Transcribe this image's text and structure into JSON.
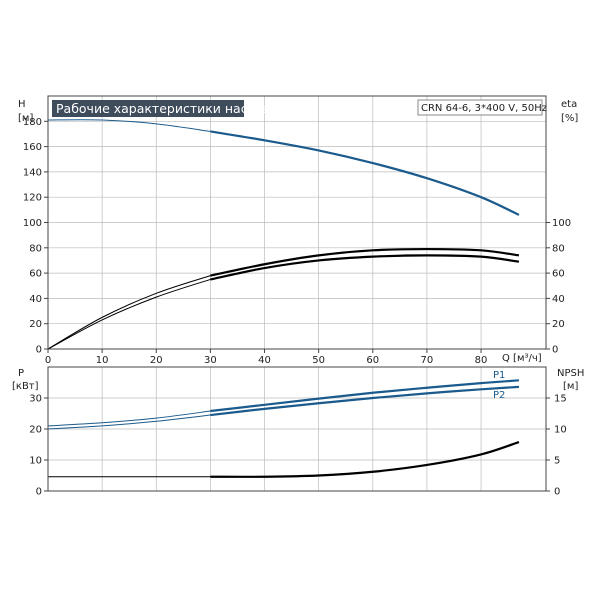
{
  "title": "Рабочие характеристики насоса",
  "model": "CRN 64-6, 3*400 V, 50Hz",
  "colors": {
    "pump": "#1a5a8c",
    "eta": "#000000",
    "grid": "#bcbcbc",
    "frame": "#444444",
    "banner": "#3f4c5c"
  },
  "chart_data": [
    {
      "type": "line",
      "panel": "top",
      "title": "Рабочие характеристики насоса",
      "xlabel": "Q [м³/ч]",
      "x_ticks": [
        0,
        10,
        20,
        30,
        40,
        50,
        60,
        70,
        80
      ],
      "xlim": [
        0,
        92
      ],
      "y_left": {
        "label_top": "H",
        "label_unit": "[м]",
        "ticks": [
          0,
          20,
          40,
          60,
          80,
          100,
          120,
          140,
          160,
          180
        ],
        "lim": [
          0,
          200
        ]
      },
      "y_right": {
        "label_top": "eta",
        "label_unit": "[%]",
        "ticks": [
          0,
          20,
          40,
          60,
          80,
          100
        ],
        "lim": [
          0,
          200
        ]
      },
      "grid": true,
      "series": [
        {
          "axis": "left",
          "color": "#1a5a8c",
          "points_thin": [
            [
              0,
              181
            ],
            [
              10,
              181
            ],
            [
              20,
              178
            ],
            [
              30,
              172
            ]
          ],
          "points_bold": [
            [
              30,
              172
            ],
            [
              40,
              165
            ],
            [
              50,
              157
            ],
            [
              60,
              147
            ],
            [
              70,
              135
            ],
            [
              80,
              120
            ],
            [
              87,
              106
            ]
          ]
        },
        {
          "axis": "right",
          "color": "#000000",
          "points_thin": [
            [
              0,
              0
            ],
            [
              10,
              23
            ],
            [
              20,
              41
            ],
            [
              30,
              55
            ]
          ],
          "points_bold": [
            [
              30,
              55
            ],
            [
              40,
              64
            ],
            [
              50,
              70
            ],
            [
              60,
              73
            ],
            [
              70,
              74
            ],
            [
              80,
              73
            ],
            [
              87,
              69
            ]
          ]
        },
        {
          "axis": "right",
          "color": "#000000",
          "points_thin": [
            [
              0,
              0
            ],
            [
              10,
              25
            ],
            [
              20,
              44
            ],
            [
              30,
              58
            ]
          ],
          "points_bold": [
            [
              30,
              58
            ],
            [
              40,
              67
            ],
            [
              50,
              74
            ],
            [
              60,
              78
            ],
            [
              70,
              79
            ],
            [
              80,
              78
            ],
            [
              87,
              74
            ]
          ]
        }
      ]
    },
    {
      "type": "line",
      "panel": "bottom",
      "xlim": [
        0,
        92
      ],
      "y_left": {
        "label_top": "P",
        "label_unit": "[кВт]",
        "ticks": [
          0,
          10,
          20,
          30
        ],
        "lim": [
          0,
          40
        ]
      },
      "y_right": {
        "label_top": "NPSH",
        "label_unit": "[м]",
        "ticks": [
          0,
          5,
          10,
          15
        ],
        "lim": [
          0,
          20
        ]
      },
      "grid": true,
      "series": [
        {
          "name": "P1",
          "axis": "left",
          "color": "#1a5a8c",
          "points_thin": [
            [
              0,
              21
            ],
            [
              10,
              22
            ],
            [
              20,
              23.5
            ],
            [
              30,
              25.8
            ]
          ],
          "points_bold": [
            [
              30,
              25.8
            ],
            [
              40,
              27.8
            ],
            [
              50,
              29.8
            ],
            [
              60,
              31.7
            ],
            [
              70,
              33.3
            ],
            [
              80,
              34.8
            ],
            [
              87,
              35.7
            ]
          ]
        },
        {
          "name": "P2",
          "axis": "left",
          "color": "#1a5a8c",
          "points_thin": [
            [
              0,
              20
            ],
            [
              10,
              21
            ],
            [
              20,
              22.5
            ],
            [
              30,
              24.5
            ]
          ],
          "points_bold": [
            [
              30,
              24.5
            ],
            [
              40,
              26.5
            ],
            [
              50,
              28.3
            ],
            [
              60,
              30
            ],
            [
              70,
              31.5
            ],
            [
              80,
              32.8
            ],
            [
              87,
              33.6
            ]
          ]
        },
        {
          "name": "NPSH",
          "axis": "right",
          "color": "#000000",
          "points_thin": [
            [
              0,
              2.3
            ],
            [
              30,
              2.3
            ]
          ],
          "points_bold": [
            [
              30,
              2.3
            ],
            [
              40,
              2.3
            ],
            [
              50,
              2.5
            ],
            [
              60,
              3.1
            ],
            [
              70,
              4.2
            ],
            [
              80,
              5.9
            ],
            [
              87,
              7.9
            ]
          ]
        }
      ]
    }
  ]
}
